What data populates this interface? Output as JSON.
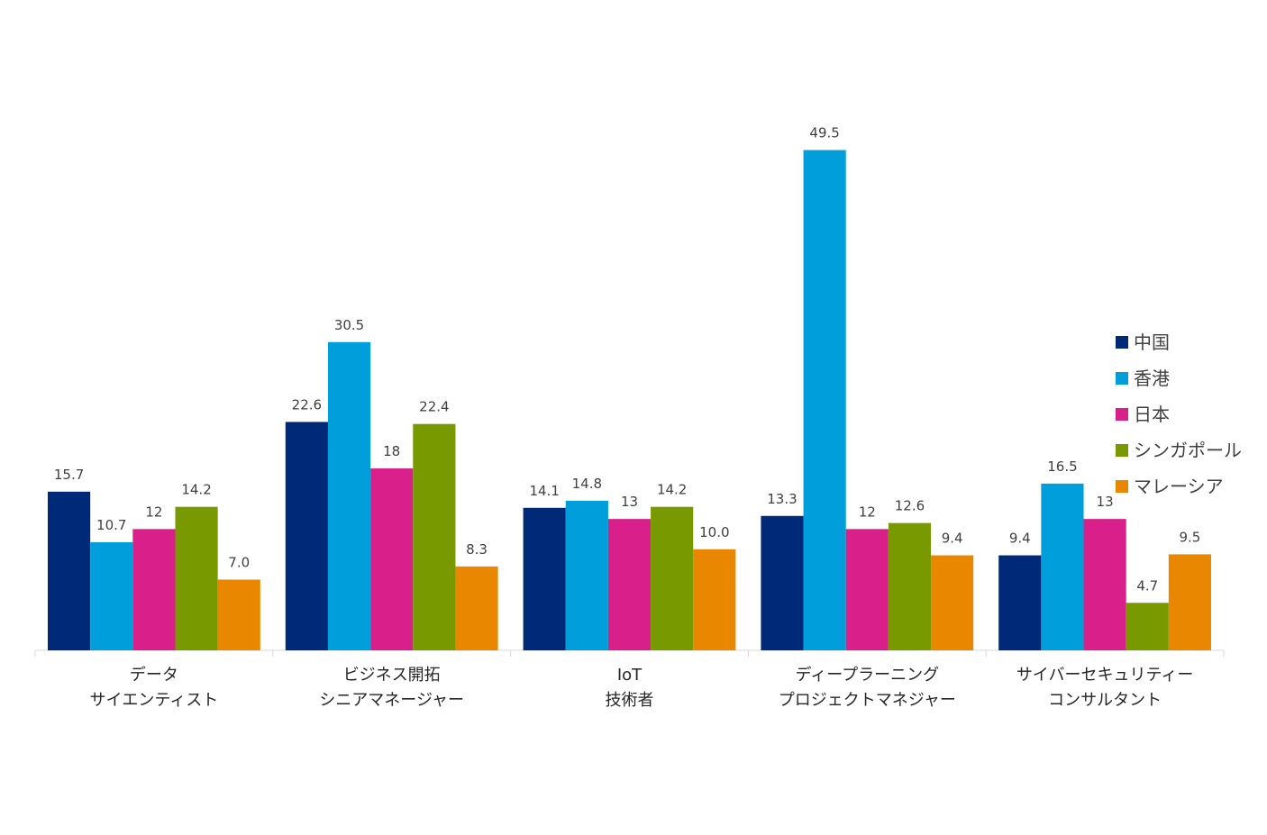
{
  "chart_data": {
    "type": "bar",
    "title": "",
    "xlabel": "",
    "ylabel": "",
    "ylim": [
      0,
      50
    ],
    "grid": false,
    "legend_position": "right",
    "value_labels": true,
    "categories": [
      [
        "データ",
        "サイエンティスト"
      ],
      [
        "ビジネス開拓",
        "シニアマネージャー"
      ],
      [
        "IoT",
        "技術者"
      ],
      [
        "ディープラーニング",
        "プロジェクトマネジャー"
      ],
      [
        "サイバーセキュリティー",
        "コンサルタント"
      ]
    ],
    "series": [
      {
        "name": "中国",
        "color": "#002a77",
        "values": [
          15.7,
          22.6,
          14.1,
          13.3,
          9.4
        ],
        "labels": [
          "15.7",
          "22.6",
          "14.1",
          "13.3",
          "9.4"
        ]
      },
      {
        "name": "香港",
        "color": "#009edb",
        "values": [
          10.7,
          30.5,
          14.8,
          49.5,
          16.5
        ],
        "labels": [
          "10.7",
          "30.5",
          "14.8",
          "49.5",
          "16.5"
        ]
      },
      {
        "name": "日本",
        "color": "#d9208a",
        "values": [
          12,
          18,
          13,
          12,
          13
        ],
        "labels": [
          "12",
          "18",
          "13",
          "12",
          "13"
        ]
      },
      {
        "name": "シンガポール",
        "color": "#789a00",
        "values": [
          14.2,
          22.4,
          14.2,
          12.6,
          4.7
        ],
        "labels": [
          "14.2",
          "22.4",
          "14.2",
          "12.6",
          "4.7"
        ]
      },
      {
        "name": "マレーシア",
        "color": "#e98700",
        "values": [
          7.0,
          8.3,
          10.0,
          9.4,
          9.5
        ],
        "labels": [
          "7.0",
          "8.3",
          "10.0",
          "9.4",
          "9.5"
        ]
      }
    ]
  }
}
